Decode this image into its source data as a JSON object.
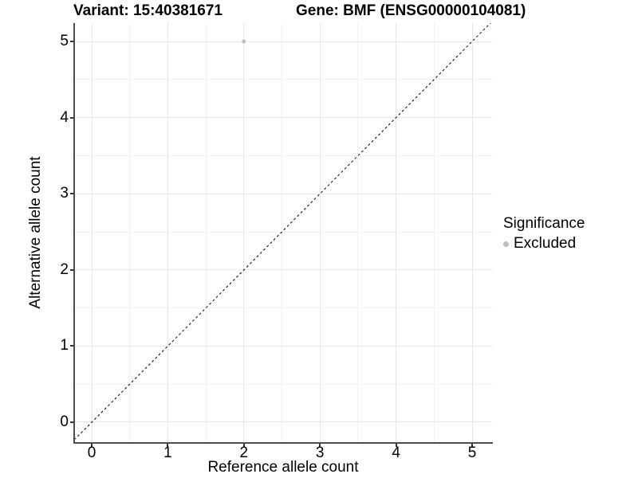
{
  "titles": {
    "left": "Variant: 15:40381671",
    "right": "Gene: BMF (ENSG00000104081)"
  },
  "axes": {
    "x": {
      "label": "Reference allele count"
    },
    "y": {
      "label": "Alternative allele count"
    }
  },
  "legend": {
    "title": "Significance",
    "items": [
      {
        "label": "Excluded",
        "color": "#bdbdbd"
      }
    ]
  },
  "colors": {
    "major_grid": "#e6e6e6",
    "minor_grid": "#f2f2f2",
    "axis_line": "#4d4d4d",
    "tick_mark": "#333333",
    "text": "#000000",
    "dashed_line": "#000000",
    "background": "#ffffff"
  },
  "chart_data": {
    "type": "scatter",
    "title_left": "Variant: 15:40381671",
    "title_right": "Gene: BMF (ENSG00000104081)",
    "xlabel": "Reference allele count",
    "ylabel": "Alternative allele count",
    "xlim": [
      -0.231,
      5.262
    ],
    "ylim": [
      -0.272,
      5.241
    ],
    "x_ticks": [
      0,
      1,
      2,
      3,
      4,
      5
    ],
    "y_ticks": [
      0,
      1,
      2,
      3,
      4,
      5
    ],
    "x_minor": [
      0.5,
      1.5,
      2.5,
      3.5,
      4.5
    ],
    "y_minor": [
      0.5,
      1.5,
      2.5,
      3.5,
      4.5
    ],
    "grid": "major+minor",
    "legend_position": "right",
    "identity_line": {
      "slope": 1,
      "intercept": 0,
      "linetype": "dashed",
      "color": "#000000"
    },
    "series": [
      {
        "name": "Excluded",
        "color": "#bdbdbd",
        "point_radius": 2.5,
        "points": [
          {
            "x": 2,
            "y": 5
          }
        ]
      }
    ]
  }
}
